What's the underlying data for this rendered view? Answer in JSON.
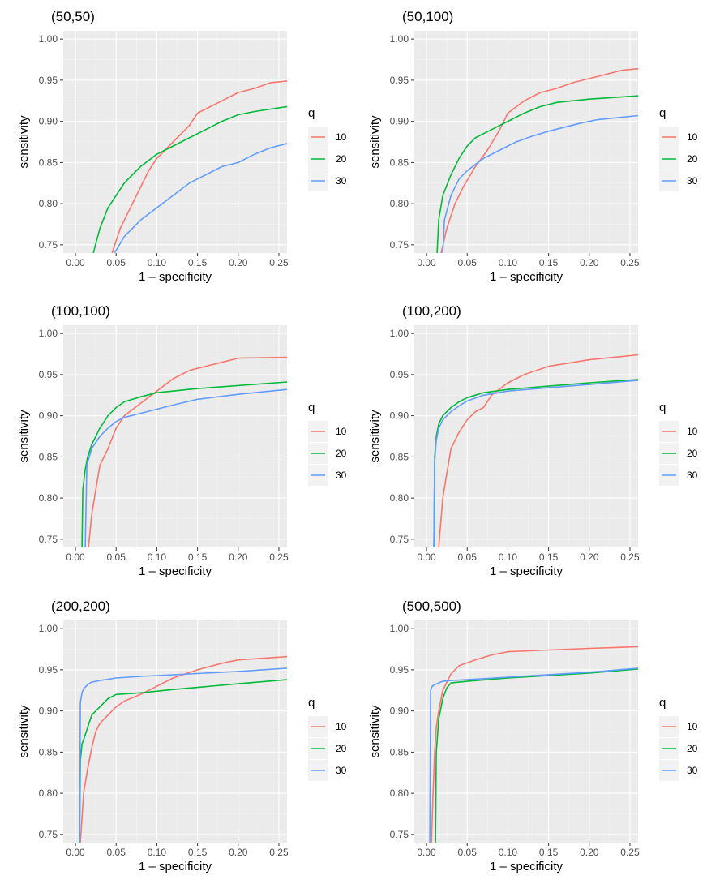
{
  "chart_data": [
    {
      "type": "line",
      "title": "(50,50)",
      "xlabel": "1 – specificity",
      "ylabel": "sensitivity",
      "xlim": [
        -0.015,
        0.26
      ],
      "ylim": [
        0.74,
        1.01
      ],
      "xticks": [
        "0.00",
        "0.05",
        "0.10",
        "0.15",
        "0.20",
        "0.25"
      ],
      "yticks": [
        "0.75",
        "0.80",
        "0.85",
        "0.90",
        "0.95",
        "1.00"
      ],
      "legend": {
        "title": "q",
        "position": "right",
        "labels": [
          "10",
          "20",
          "30"
        ]
      },
      "series": [
        {
          "name": "10",
          "color": "#F8766D",
          "x": [
            0.045,
            0.055,
            0.065,
            0.075,
            0.09,
            0.1,
            0.12,
            0.14,
            0.15,
            0.16,
            0.18,
            0.2,
            0.22,
            0.24,
            0.26
          ],
          "y": [
            0.74,
            0.77,
            0.79,
            0.81,
            0.84,
            0.855,
            0.875,
            0.895,
            0.91,
            0.915,
            0.925,
            0.935,
            0.94,
            0.947,
            0.949
          ]
        },
        {
          "name": "20",
          "color": "#00BA38",
          "x": [
            0.022,
            0.03,
            0.04,
            0.05,
            0.06,
            0.08,
            0.1,
            0.12,
            0.14,
            0.16,
            0.18,
            0.2,
            0.22,
            0.26
          ],
          "y": [
            0.74,
            0.77,
            0.795,
            0.81,
            0.825,
            0.845,
            0.86,
            0.87,
            0.88,
            0.89,
            0.9,
            0.908,
            0.912,
            0.918
          ]
        },
        {
          "name": "30",
          "color": "#619CFF",
          "x": [
            0.048,
            0.06,
            0.08,
            0.1,
            0.12,
            0.14,
            0.16,
            0.18,
            0.2,
            0.22,
            0.24,
            0.26
          ],
          "y": [
            0.74,
            0.76,
            0.78,
            0.795,
            0.81,
            0.825,
            0.835,
            0.845,
            0.85,
            0.86,
            0.868,
            0.873
          ]
        }
      ]
    },
    {
      "type": "line",
      "title": "(50,100)",
      "xlabel": "1 – specificity",
      "ylabel": "sensitivity",
      "xlim": [
        -0.015,
        0.26
      ],
      "ylim": [
        0.74,
        1.01
      ],
      "xticks": [
        "0.00",
        "0.05",
        "0.10",
        "0.15",
        "0.20",
        "0.25"
      ],
      "yticks": [
        "0.75",
        "0.80",
        "0.85",
        "0.90",
        "0.95",
        "1.00"
      ],
      "legend": {
        "title": "q",
        "position": "right",
        "labels": [
          "10",
          "20",
          "30"
        ]
      },
      "series": [
        {
          "name": "10",
          "color": "#F8766D",
          "x": [
            0.018,
            0.025,
            0.035,
            0.045,
            0.06,
            0.075,
            0.09,
            0.1,
            0.12,
            0.14,
            0.16,
            0.18,
            0.2,
            0.22,
            0.24,
            0.26
          ],
          "y": [
            0.74,
            0.77,
            0.8,
            0.82,
            0.845,
            0.865,
            0.89,
            0.91,
            0.925,
            0.935,
            0.94,
            0.947,
            0.952,
            0.957,
            0.962,
            0.964
          ]
        },
        {
          "name": "20",
          "color": "#00BA38",
          "x": [
            0.013,
            0.015,
            0.02,
            0.03,
            0.04,
            0.05,
            0.06,
            0.08,
            0.1,
            0.12,
            0.14,
            0.16,
            0.2,
            0.26
          ],
          "y": [
            0.74,
            0.78,
            0.81,
            0.835,
            0.855,
            0.87,
            0.88,
            0.89,
            0.9,
            0.91,
            0.918,
            0.923,
            0.927,
            0.931
          ]
        },
        {
          "name": "30",
          "color": "#619CFF",
          "x": [
            0.02,
            0.022,
            0.03,
            0.04,
            0.05,
            0.07,
            0.09,
            0.11,
            0.13,
            0.15,
            0.17,
            0.19,
            0.21,
            0.26
          ],
          "y": [
            0.74,
            0.78,
            0.81,
            0.83,
            0.84,
            0.855,
            0.865,
            0.875,
            0.882,
            0.888,
            0.893,
            0.898,
            0.902,
            0.907
          ]
        }
      ]
    },
    {
      "type": "line",
      "title": "(100,100)",
      "xlabel": "1 – specificity",
      "ylabel": "sensitivity",
      "xlim": [
        -0.015,
        0.26
      ],
      "ylim": [
        0.74,
        1.01
      ],
      "xticks": [
        "0.00",
        "0.05",
        "0.10",
        "0.15",
        "0.20",
        "0.25"
      ],
      "yticks": [
        "0.75",
        "0.80",
        "0.85",
        "0.90",
        "0.95",
        "1.00"
      ],
      "legend": {
        "title": "q",
        "position": "right",
        "labels": [
          "10",
          "20",
          "30"
        ]
      },
      "series": [
        {
          "name": "10",
          "color": "#F8766D",
          "x": [
            0.016,
            0.02,
            0.025,
            0.03,
            0.04,
            0.05,
            0.06,
            0.08,
            0.1,
            0.12,
            0.14,
            0.16,
            0.18,
            0.2,
            0.26
          ],
          "y": [
            0.74,
            0.78,
            0.81,
            0.84,
            0.86,
            0.885,
            0.9,
            0.915,
            0.93,
            0.945,
            0.955,
            0.96,
            0.965,
            0.97,
            0.971
          ]
        },
        {
          "name": "20",
          "color": "#00BA38",
          "x": [
            0.008,
            0.009,
            0.012,
            0.015,
            0.02,
            0.03,
            0.04,
            0.05,
            0.06,
            0.08,
            0.1,
            0.15,
            0.26
          ],
          "y": [
            0.74,
            0.81,
            0.835,
            0.85,
            0.865,
            0.885,
            0.9,
            0.91,
            0.917,
            0.923,
            0.928,
            0.933,
            0.941
          ]
        },
        {
          "name": "30",
          "color": "#619CFF",
          "x": [
            0.012,
            0.014,
            0.02,
            0.03,
            0.04,
            0.05,
            0.06,
            0.08,
            0.1,
            0.12,
            0.15,
            0.2,
            0.26
          ],
          "y": [
            0.74,
            0.84,
            0.86,
            0.875,
            0.885,
            0.893,
            0.898,
            0.903,
            0.908,
            0.913,
            0.92,
            0.926,
            0.932
          ]
        }
      ]
    },
    {
      "type": "line",
      "title": "(100,200)",
      "xlabel": "1 – specificity",
      "ylabel": "sensitivity",
      "xlim": [
        -0.015,
        0.26
      ],
      "ylim": [
        0.74,
        1.01
      ],
      "xticks": [
        "0.00",
        "0.05",
        "0.10",
        "0.15",
        "0.20",
        "0.25"
      ],
      "yticks": [
        "0.75",
        "0.80",
        "0.85",
        "0.90",
        "0.95",
        "1.00"
      ],
      "legend": {
        "title": "q",
        "position": "right",
        "labels": [
          "10",
          "20",
          "30"
        ]
      },
      "series": [
        {
          "name": "10",
          "color": "#F8766D",
          "x": [
            0.015,
            0.02,
            0.025,
            0.03,
            0.04,
            0.05,
            0.06,
            0.07,
            0.08,
            0.1,
            0.12,
            0.15,
            0.2,
            0.26
          ],
          "y": [
            0.74,
            0.8,
            0.83,
            0.86,
            0.88,
            0.895,
            0.905,
            0.91,
            0.925,
            0.94,
            0.95,
            0.96,
            0.968,
            0.974
          ]
        },
        {
          "name": "20",
          "color": "#00BA38",
          "x": [
            0.009,
            0.01,
            0.012,
            0.015,
            0.02,
            0.03,
            0.04,
            0.05,
            0.07,
            0.1,
            0.15,
            0.2,
            0.26
          ],
          "y": [
            0.74,
            0.85,
            0.875,
            0.89,
            0.9,
            0.91,
            0.917,
            0.922,
            0.928,
            0.932,
            0.936,
            0.94,
            0.944
          ]
        },
        {
          "name": "30",
          "color": "#619CFF",
          "x": [
            0.009,
            0.01,
            0.012,
            0.015,
            0.02,
            0.03,
            0.04,
            0.05,
            0.07,
            0.1,
            0.15,
            0.2,
            0.26
          ],
          "y": [
            0.74,
            0.845,
            0.87,
            0.885,
            0.895,
            0.905,
            0.912,
            0.918,
            0.925,
            0.93,
            0.934,
            0.938,
            0.943
          ]
        }
      ]
    },
    {
      "type": "line",
      "title": "(200,200)",
      "xlabel": "1 – specificity",
      "ylabel": "sensitivity",
      "xlim": [
        -0.015,
        0.26
      ],
      "ylim": [
        0.74,
        1.01
      ],
      "xticks": [
        "0.00",
        "0.05",
        "0.10",
        "0.15",
        "0.20",
        "0.25"
      ],
      "yticks": [
        "0.75",
        "0.80",
        "0.85",
        "0.90",
        "0.95",
        "1.00"
      ],
      "legend": {
        "title": "q",
        "position": "right",
        "labels": [
          "10",
          "20",
          "30"
        ]
      },
      "series": [
        {
          "name": "10",
          "color": "#F8766D",
          "x": [
            0.006,
            0.008,
            0.01,
            0.015,
            0.02,
            0.025,
            0.03,
            0.04,
            0.05,
            0.06,
            0.08,
            0.1,
            0.12,
            0.15,
            0.18,
            0.2,
            0.26
          ],
          "y": [
            0.74,
            0.77,
            0.8,
            0.83,
            0.855,
            0.875,
            0.885,
            0.895,
            0.905,
            0.912,
            0.92,
            0.93,
            0.94,
            0.95,
            0.958,
            0.962,
            0.966
          ]
        },
        {
          "name": "20",
          "color": "#00BA38",
          "x": [
            0.005,
            0.006,
            0.008,
            0.01,
            0.015,
            0.02,
            0.03,
            0.04,
            0.05,
            0.08,
            0.12,
            0.2,
            0.26
          ],
          "y": [
            0.74,
            0.84,
            0.86,
            0.865,
            0.88,
            0.895,
            0.905,
            0.915,
            0.92,
            0.922,
            0.926,
            0.933,
            0.938
          ]
        },
        {
          "name": "30",
          "color": "#619CFF",
          "x": [
            0.005,
            0.006,
            0.008,
            0.01,
            0.015,
            0.02,
            0.03,
            0.05,
            0.08,
            0.12,
            0.2,
            0.26
          ],
          "y": [
            0.74,
            0.91,
            0.922,
            0.927,
            0.932,
            0.935,
            0.937,
            0.94,
            0.942,
            0.944,
            0.948,
            0.952
          ]
        }
      ]
    },
    {
      "type": "line",
      "title": "(500,500)",
      "xlabel": "1 – specificity",
      "ylabel": "sensitivity",
      "xlim": [
        -0.015,
        0.26
      ],
      "ylim": [
        0.74,
        1.01
      ],
      "xticks": [
        "0.00",
        "0.05",
        "0.10",
        "0.15",
        "0.20",
        "0.25"
      ],
      "yticks": [
        "0.75",
        "0.80",
        "0.85",
        "0.90",
        "0.95",
        "1.00"
      ],
      "legend": {
        "title": "q",
        "position": "right",
        "labels": [
          "10",
          "20",
          "30"
        ]
      },
      "series": [
        {
          "name": "10",
          "color": "#F8766D",
          "x": [
            0.006,
            0.008,
            0.01,
            0.012,
            0.015,
            0.02,
            0.03,
            0.04,
            0.06,
            0.08,
            0.1,
            0.15,
            0.2,
            0.26
          ],
          "y": [
            0.74,
            0.8,
            0.85,
            0.88,
            0.9,
            0.925,
            0.945,
            0.955,
            0.962,
            0.968,
            0.972,
            0.974,
            0.976,
            0.978
          ]
        },
        {
          "name": "20",
          "color": "#00BA38",
          "x": [
            0.011,
            0.012,
            0.015,
            0.02,
            0.025,
            0.03,
            0.05,
            0.1,
            0.2,
            0.26
          ],
          "y": [
            0.74,
            0.85,
            0.89,
            0.915,
            0.928,
            0.934,
            0.936,
            0.94,
            0.946,
            0.951
          ]
        },
        {
          "name": "30",
          "color": "#619CFF",
          "x": [
            0.004,
            0.005,
            0.007,
            0.01,
            0.015,
            0.02,
            0.03,
            0.05,
            0.1,
            0.2,
            0.26
          ],
          "y": [
            0.74,
            0.925,
            0.93,
            0.932,
            0.934,
            0.936,
            0.937,
            0.938,
            0.941,
            0.947,
            0.952
          ]
        }
      ]
    }
  ]
}
